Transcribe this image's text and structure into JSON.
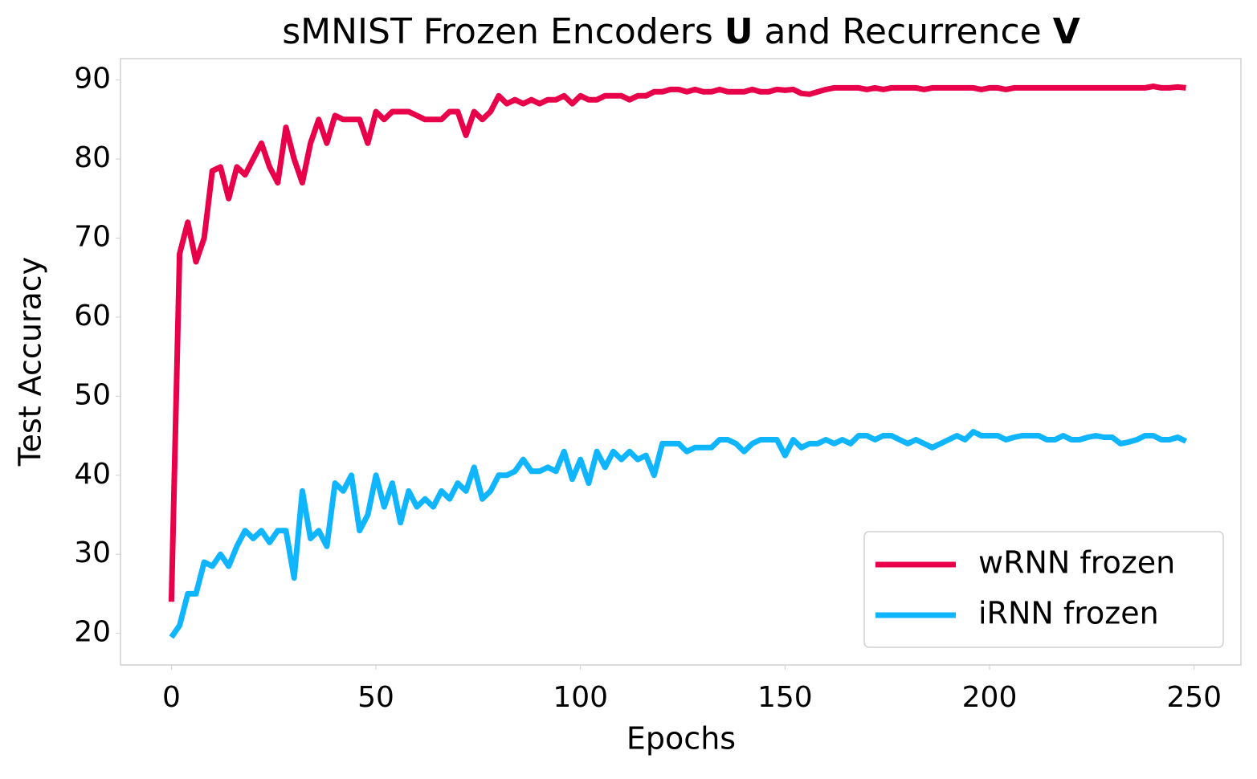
{
  "chart_data": {
    "type": "line",
    "title": [
      {
        "text": "sMNIST Frozen Encoders ",
        "bold": false
      },
      {
        "text": "U",
        "bold": true
      },
      {
        "text": " and Recurrence ",
        "bold": false
      },
      {
        "text": "V",
        "bold": true
      }
    ],
    "x_label": "Epochs",
    "y_label": "Test Accuracy",
    "xlim": [
      -12.45,
      261.45
    ],
    "ylim": [
      16.0,
      92.7
    ],
    "xticks": [
      0,
      50,
      100,
      150,
      200,
      250
    ],
    "yticks": [
      20,
      30,
      40,
      50,
      60,
      70,
      80,
      90
    ],
    "grid": false,
    "legend": "lower right",
    "x": [
      0,
      2,
      4,
      6,
      8,
      10,
      12,
      14,
      16,
      18,
      20,
      22,
      24,
      26,
      28,
      30,
      32,
      34,
      36,
      38,
      40,
      42,
      44,
      46,
      48,
      50,
      52,
      54,
      56,
      58,
      60,
      62,
      64,
      66,
      68,
      70,
      72,
      74,
      76,
      78,
      80,
      82,
      84,
      86,
      88,
      90,
      92,
      94,
      96,
      98,
      100,
      102,
      104,
      106,
      108,
      110,
      112,
      114,
      116,
      118,
      120,
      122,
      124,
      126,
      128,
      130,
      132,
      134,
      136,
      138,
      140,
      142,
      144,
      146,
      148,
      150,
      152,
      154,
      156,
      158,
      160,
      162,
      164,
      166,
      168,
      170,
      172,
      174,
      176,
      178,
      180,
      182,
      184,
      186,
      188,
      190,
      192,
      194,
      196,
      198,
      200,
      202,
      204,
      206,
      208,
      210,
      212,
      214,
      216,
      218,
      220,
      222,
      224,
      226,
      228,
      230,
      232,
      234,
      236,
      238,
      240,
      242,
      244,
      246,
      248
    ],
    "series": [
      {
        "name": "wRNN frozen",
        "color": "#e8004a",
        "values": [
          24,
          68,
          72,
          67,
          70,
          78.5,
          79,
          75,
          79,
          78,
          80,
          82,
          79,
          77,
          84,
          80,
          77,
          82,
          85,
          82,
          85.5,
          85,
          85,
          85,
          82,
          86,
          85,
          86,
          86,
          86,
          85.5,
          85,
          85,
          85,
          86,
          86,
          83,
          86,
          85,
          86,
          88,
          87,
          87.5,
          87,
          87.5,
          87,
          87.5,
          87.5,
          88,
          87,
          88,
          87.5,
          87.5,
          88,
          88,
          88,
          87.5,
          88,
          88,
          88.5,
          88.5,
          88.8,
          88.8,
          88.5,
          88.8,
          88.5,
          88.5,
          88.8,
          88.5,
          88.5,
          88.5,
          88.8,
          88.5,
          88.5,
          88.8,
          88.7,
          88.8,
          88.3,
          88.2,
          88.5,
          88.8,
          89,
          89,
          89,
          89,
          88.8,
          89,
          88.8,
          89,
          89,
          89,
          89,
          88.8,
          89,
          89,
          89,
          89,
          89,
          89,
          88.8,
          89,
          89,
          88.8,
          89,
          89,
          89,
          89,
          89,
          89,
          89,
          89,
          89,
          89,
          89,
          89,
          89,
          89,
          89,
          89,
          89,
          89.2,
          89,
          89,
          89.1,
          89
        ]
      },
      {
        "name": "iRNN frozen",
        "color": "#0fb5ff",
        "values": [
          19.5,
          21,
          25,
          25,
          29,
          28.5,
          30,
          28.5,
          31,
          33,
          32,
          33,
          31.5,
          33,
          33,
          27,
          38,
          32,
          33,
          31,
          39,
          38,
          40,
          33,
          35,
          40,
          36,
          39,
          34,
          38,
          36,
          37,
          36,
          38,
          37,
          39,
          38,
          41,
          37,
          38,
          40,
          40,
          40.5,
          42,
          40.5,
          40.5,
          41,
          40.5,
          43,
          39.5,
          42,
          39,
          43,
          41,
          43,
          42,
          43,
          42,
          42.5,
          40,
          44,
          44,
          44,
          43,
          43.5,
          43.5,
          43.5,
          44.5,
          44.5,
          44,
          43,
          44,
          44.5,
          44.5,
          44.5,
          42.5,
          44.5,
          43.5,
          44,
          44,
          44.5,
          44,
          44.5,
          44,
          45,
          45,
          44.5,
          45,
          45,
          44.5,
          44,
          44.5,
          44,
          43.5,
          44,
          44.5,
          45,
          44.5,
          45.5,
          45,
          45,
          45,
          44.5,
          44.8,
          45,
          45,
          45,
          44.5,
          44.5,
          45,
          44.5,
          44.5,
          44.8,
          45,
          44.8,
          44.8,
          44,
          44.2,
          44.5,
          45,
          45,
          44.5,
          44.5,
          44.8,
          44.3
        ]
      }
    ]
  }
}
